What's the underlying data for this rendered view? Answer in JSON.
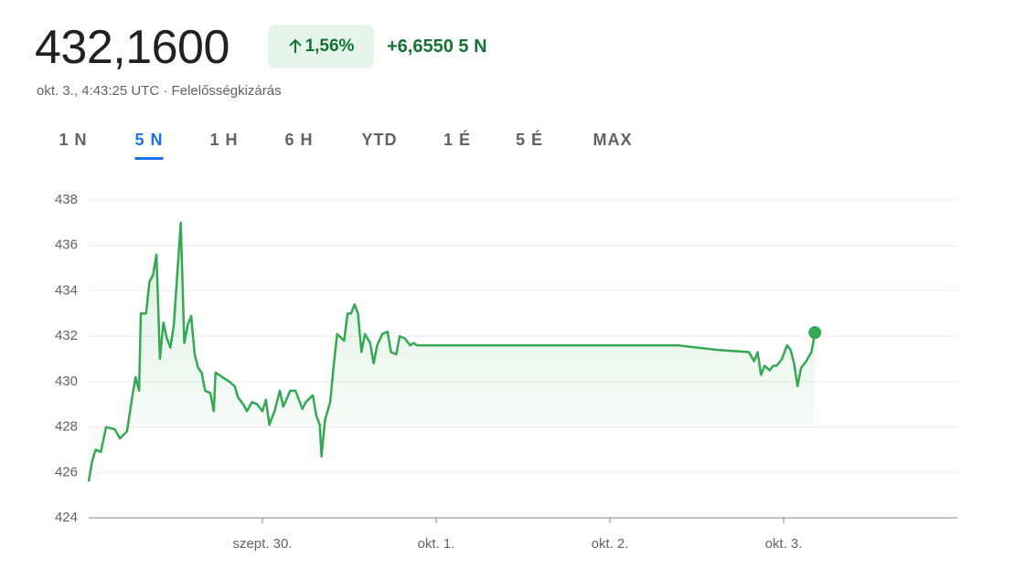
{
  "header": {
    "price": "432,1600",
    "change_pct": "1,56%",
    "change_abs": "+6,6550 5 N",
    "timestamp": "okt. 3., 4:43:25 UTC · Felelősségkizárás"
  },
  "tabs": [
    "1 N",
    "5 N",
    "1 H",
    "6 H",
    "YTD",
    "1 É",
    "5 É",
    "MAX"
  ],
  "active_tab": 1,
  "chart_data": {
    "type": "line",
    "color": "#34a853",
    "grid": true,
    "xlim": [
      0,
      5
    ],
    "ylim": [
      424,
      438
    ],
    "xticks": [
      {
        "value": 1,
        "label": "szept. 30."
      },
      {
        "value": 2,
        "label": "okt. 1."
      },
      {
        "value": 3,
        "label": "okt. 2."
      },
      {
        "value": 4,
        "label": "okt. 3."
      }
    ],
    "yticks": [
      424,
      426,
      428,
      430,
      432,
      434,
      436,
      438
    ],
    "x": [
      0,
      0.02,
      0.04,
      0.07,
      0.1,
      0.15,
      0.18,
      0.22,
      0.25,
      0.27,
      0.29,
      0.3,
      0.33,
      0.35,
      0.37,
      0.39,
      0.41,
      0.43,
      0.45,
      0.47,
      0.49,
      0.53,
      0.55,
      0.57,
      0.59,
      0.61,
      0.63,
      0.65,
      0.67,
      0.7,
      0.72,
      0.73,
      0.77,
      0.81,
      0.84,
      0.86,
      0.89,
      0.91,
      0.94,
      0.97,
      1.0,
      1.02,
      1.04,
      1.07,
      1.1,
      1.12,
      1.16,
      1.19,
      1.21,
      1.23,
      1.25,
      1.29,
      1.31,
      1.33,
      1.34,
      1.36,
      1.39,
      1.41,
      1.43,
      1.47,
      1.49,
      1.51,
      1.53,
      1.55,
      1.57,
      1.59,
      1.62,
      1.64,
      1.66,
      1.69,
      1.72,
      1.74,
      1.77,
      1.79,
      1.82,
      1.85,
      1.87,
      1.89,
      3.39,
      3.62,
      3.8,
      3.83,
      3.85,
      3.87,
      3.89,
      3.92,
      3.94,
      3.96,
      3.99,
      4.02,
      4.04,
      4.06,
      4.08,
      4.1,
      4.13,
      4.16,
      4.18
    ],
    "values": [
      425.6,
      426.5,
      427.0,
      426.9,
      428.0,
      427.9,
      427.5,
      427.8,
      429.3,
      430.2,
      429.6,
      433.0,
      433.0,
      434.4,
      434.7,
      435.6,
      431.0,
      432.6,
      431.9,
      431.5,
      432.5,
      437.0,
      431.7,
      432.5,
      432.9,
      431.2,
      430.6,
      430.4,
      429.6,
      429.5,
      428.7,
      430.4,
      430.2,
      430.0,
      429.8,
      429.3,
      429.0,
      428.7,
      429.1,
      429.0,
      428.7,
      429.2,
      428.1,
      428.7,
      429.6,
      428.9,
      429.6,
      429.6,
      429.2,
      428.8,
      429.1,
      429.4,
      428.5,
      428.1,
      426.7,
      428.3,
      429.1,
      430.7,
      432.1,
      431.8,
      433.0,
      433.0,
      433.4,
      433.0,
      431.3,
      432.1,
      431.7,
      430.8,
      431.6,
      432.1,
      432.2,
      431.3,
      431.2,
      432.0,
      431.9,
      431.6,
      431.7,
      431.6,
      431.6,
      431.4,
      431.3,
      430.9,
      431.3,
      430.3,
      430.7,
      430.5,
      430.7,
      430.7,
      431.0,
      431.6,
      431.4,
      430.8,
      429.8,
      430.6,
      430.9,
      431.3,
      432.16
    ]
  }
}
